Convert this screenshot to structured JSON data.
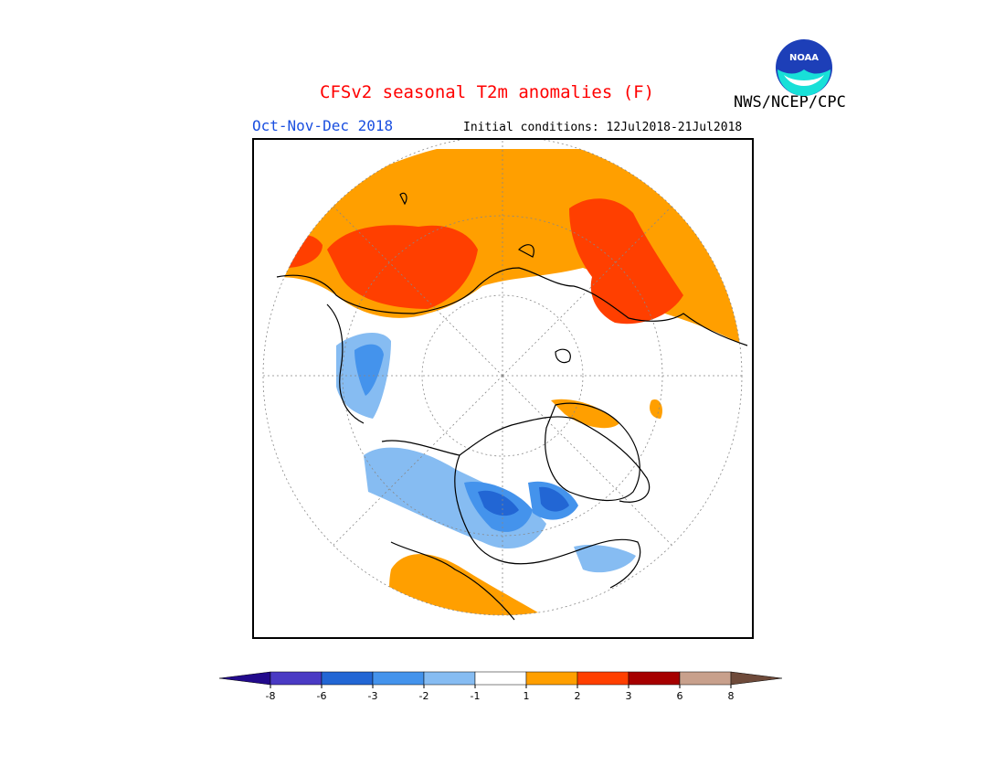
{
  "header": {
    "title": "CFSv2 seasonal T2m anomalies (F)",
    "agency": "NWS/NCEP/CPC",
    "logo_text": "NOAA",
    "period": "Oct-Nov-Dec 2018",
    "initial_conditions": "Initial conditions: 12Jul2018-21Jul2018"
  },
  "colors": {
    "lt_-8": "#220a8c",
    "-8_-6": "#4a3ac4",
    "-6_-3": "#2266d4",
    "-3_-2": "#4493ec",
    "-2_-1": "#86bcf2",
    "-1_1": "#ffffff",
    "1_2": "#ff9f00",
    "2_3": "#ff3f00",
    "3_6": "#a60000",
    "6_8": "#c8a08c",
    "gt_8": "#6e4a3a"
  },
  "legend": {
    "ticks": [
      "-8",
      "-6",
      "-3",
      "-2",
      "-1",
      "1",
      "2",
      "3",
      "6",
      "8"
    ]
  },
  "map": {
    "projection": "polar-stereographic",
    "region": "Northern Hemisphere"
  }
}
